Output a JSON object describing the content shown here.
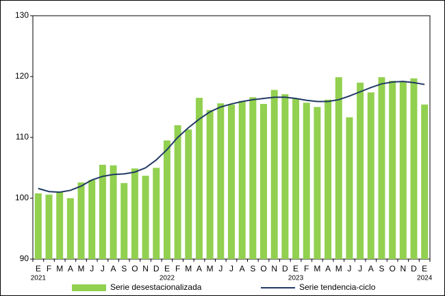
{
  "chart_data": {
    "type": "bar_line",
    "categories": [
      "E",
      "F",
      "M",
      "A",
      "M",
      "J",
      "J",
      "A",
      "S",
      "O",
      "N",
      "D",
      "E",
      "F",
      "M",
      "A",
      "M",
      "J",
      "J",
      "A",
      "S",
      "O",
      "N",
      "D",
      "E",
      "F",
      "M",
      "A",
      "M",
      "J",
      "J",
      "A",
      "S",
      "O",
      "N",
      "D",
      "E"
    ],
    "category_years": [
      "2021",
      null,
      null,
      null,
      null,
      null,
      null,
      null,
      null,
      null,
      null,
      null,
      "2022",
      null,
      null,
      null,
      null,
      null,
      null,
      null,
      null,
      null,
      null,
      null,
      "2023",
      null,
      null,
      null,
      null,
      null,
      null,
      null,
      null,
      null,
      null,
      null,
      "2024"
    ],
    "series": [
      {
        "name": "Serie desestacionalizada",
        "type": "bar",
        "color": "#92d050",
        "values": [
          100.8,
          100.6,
          101.0,
          100.0,
          102.6,
          103.0,
          105.5,
          105.4,
          102.5,
          104.9,
          103.7,
          105.0,
          109.5,
          112.0,
          111.3,
          116.5,
          114.5,
          115.6,
          115.4,
          116.0,
          116.6,
          115.5,
          117.8,
          117.1,
          116.4,
          115.7,
          115.0,
          116.2,
          119.9,
          113.3,
          119.0,
          117.4,
          119.9,
          119.3,
          119.2,
          119.7,
          115.4
        ]
      },
      {
        "name": "Serie tendencia-ciclo",
        "type": "line",
        "color": "#1f3864",
        "values": [
          101.6,
          101.1,
          101.0,
          101.3,
          102.0,
          103.0,
          103.6,
          103.9,
          104.0,
          104.3,
          105.0,
          106.3,
          108.0,
          110.0,
          111.6,
          113.0,
          114.2,
          115.0,
          115.5,
          115.9,
          116.2,
          116.4,
          116.6,
          116.6,
          116.4,
          116.1,
          115.9,
          115.9,
          116.2,
          116.8,
          117.5,
          118.2,
          118.8,
          119.1,
          119.2,
          119.0,
          118.7
        ]
      }
    ],
    "ylim": [
      90,
      130
    ],
    "yticks": [
      90,
      100,
      110,
      120,
      130
    ],
    "grid": false,
    "legend": "bottom"
  }
}
